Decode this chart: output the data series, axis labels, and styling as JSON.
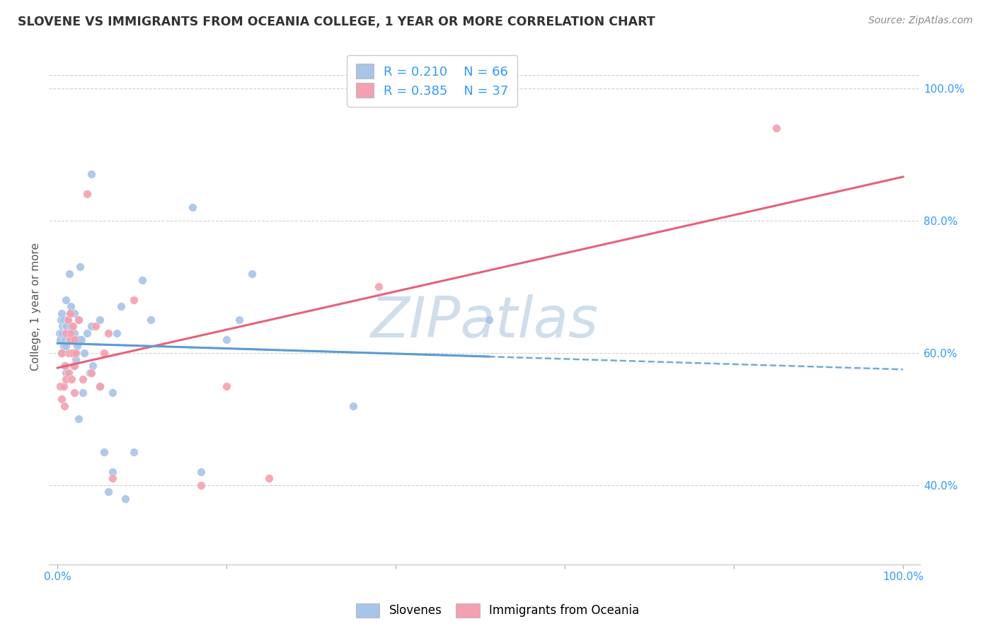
{
  "title": "SLOVENE VS IMMIGRANTS FROM OCEANIA COLLEGE, 1 YEAR OR MORE CORRELATION CHART",
  "source": "Source: ZipAtlas.com",
  "ylabel": "College, 1 year or more",
  "xlim": [
    -0.01,
    1.02
  ],
  "ylim": [
    0.28,
    1.06
  ],
  "x_ticks": [
    0.0,
    0.2,
    0.4,
    0.6,
    0.8,
    1.0
  ],
  "x_tick_labels": [
    "0.0%",
    "",
    "",
    "",
    "",
    "100.0%"
  ],
  "y_tick_labels_right": [
    "100.0%",
    "80.0%",
    "60.0%",
    "40.0%"
  ],
  "y_tick_positions_right": [
    1.0,
    0.8,
    0.6,
    0.4
  ],
  "slovene_R": 0.21,
  "slovene_N": 66,
  "oceania_R": 0.385,
  "oceania_N": 37,
  "slovene_color": "#a8c4e8",
  "oceania_color": "#f4a0b0",
  "slovene_line_color": "#5b9bd5",
  "oceania_line_color": "#e8607a",
  "legend_text_color": "#3399ff",
  "background_color": "#ffffff",
  "grid_color": "#cccccc",
  "watermark_color": "#c8d8e8",
  "slovene_x": [
    0.002,
    0.003,
    0.004,
    0.005,
    0.005,
    0.005,
    0.006,
    0.007,
    0.007,
    0.008,
    0.008,
    0.009,
    0.01,
    0.01,
    0.01,
    0.01,
    0.011,
    0.012,
    0.013,
    0.013,
    0.014,
    0.015,
    0.015,
    0.016,
    0.016,
    0.017,
    0.018,
    0.018,
    0.019,
    0.02,
    0.02,
    0.02,
    0.021,
    0.022,
    0.023,
    0.025,
    0.025,
    0.025,
    0.027,
    0.028,
    0.03,
    0.032,
    0.035,
    0.038,
    0.04,
    0.04,
    0.042,
    0.05,
    0.05,
    0.055,
    0.06,
    0.065,
    0.065,
    0.07,
    0.075,
    0.08,
    0.09,
    0.1,
    0.11,
    0.16,
    0.17,
    0.2,
    0.215,
    0.23,
    0.35,
    0.51
  ],
  "slovene_y": [
    0.63,
    0.62,
    0.65,
    0.66,
    0.63,
    0.6,
    0.64,
    0.65,
    0.61,
    0.64,
    0.58,
    0.62,
    0.68,
    0.64,
    0.61,
    0.57,
    0.64,
    0.65,
    0.63,
    0.6,
    0.72,
    0.66,
    0.62,
    0.67,
    0.64,
    0.6,
    0.63,
    0.6,
    0.58,
    0.66,
    0.63,
    0.6,
    0.62,
    0.59,
    0.61,
    0.65,
    0.62,
    0.5,
    0.73,
    0.62,
    0.54,
    0.6,
    0.63,
    0.57,
    0.87,
    0.64,
    0.58,
    0.65,
    0.55,
    0.45,
    0.39,
    0.54,
    0.42,
    0.63,
    0.67,
    0.38,
    0.45,
    0.71,
    0.65,
    0.82,
    0.42,
    0.62,
    0.65,
    0.72,
    0.52,
    0.65
  ],
  "oceania_x": [
    0.003,
    0.005,
    0.005,
    0.007,
    0.008,
    0.009,
    0.01,
    0.01,
    0.012,
    0.013,
    0.013,
    0.015,
    0.015,
    0.016,
    0.016,
    0.017,
    0.018,
    0.018,
    0.02,
    0.02,
    0.02,
    0.022,
    0.025,
    0.03,
    0.035,
    0.04,
    0.045,
    0.05,
    0.055,
    0.06,
    0.065,
    0.09,
    0.17,
    0.2,
    0.25,
    0.38,
    0.85
  ],
  "oceania_y": [
    0.55,
    0.53,
    0.6,
    0.55,
    0.52,
    0.58,
    0.63,
    0.56,
    0.65,
    0.6,
    0.57,
    0.66,
    0.62,
    0.63,
    0.6,
    0.56,
    0.64,
    0.6,
    0.62,
    0.58,
    0.54,
    0.6,
    0.65,
    0.56,
    0.84,
    0.57,
    0.64,
    0.55,
    0.6,
    0.63,
    0.41,
    0.68,
    0.4,
    0.55,
    0.41,
    0.7,
    0.94
  ]
}
